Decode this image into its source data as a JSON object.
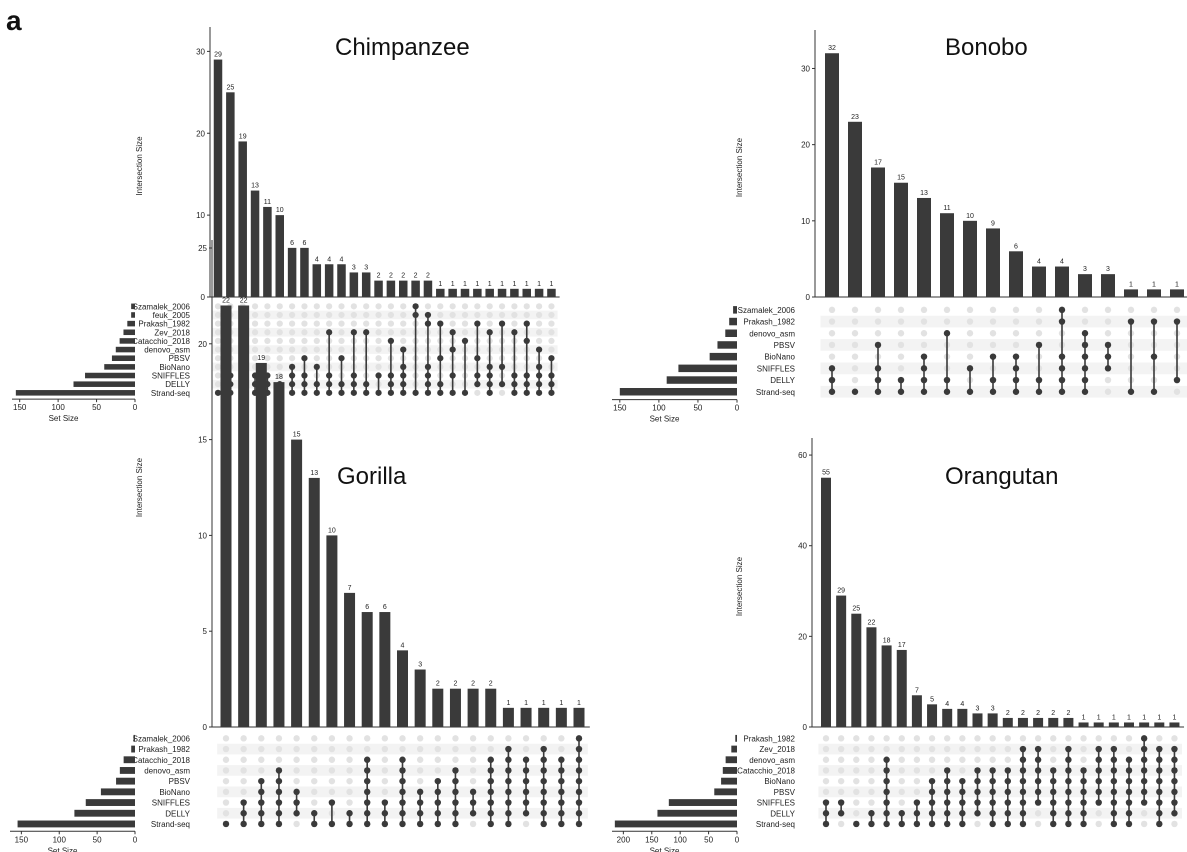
{
  "panel_label": "a",
  "colors": {
    "bar": "#3a3a3a",
    "dot_active": "#3a3a3a",
    "dot_inactive": "#e2e2e2",
    "stripe": "#f3f3f3",
    "axis": "#333333",
    "text": "#222222"
  },
  "chart_data": [
    {
      "type": "upset",
      "title": "Chimpanzee",
      "ylabel": "Intersection Size",
      "xlabel_sets": "Set Size",
      "ylim": [
        0,
        32
      ],
      "yticks": [
        0,
        10,
        20,
        30
      ],
      "set_ticks": [
        150,
        100,
        50,
        0
      ],
      "sets": [
        "Szamalek_2006",
        "feuk_2005",
        "Prakash_1982",
        "Zev_2018",
        "Catacchio_2018",
        "denovo_asm",
        "PBSV",
        "BioNano",
        "SNIFFLES",
        "DELLY",
        "Strand-seq"
      ],
      "set_sizes": [
        5,
        5,
        10,
        15,
        20,
        25,
        30,
        40,
        65,
        80,
        155
      ],
      "intersections": [
        {
          "size": 29,
          "members": [
            10
          ]
        },
        {
          "size": 25,
          "members": [
            8,
            9,
            10
          ]
        },
        {
          "size": 19,
          "members": [
            5,
            9,
            10
          ]
        },
        {
          "size": 13,
          "members": [
            8,
            9,
            10
          ]
        },
        {
          "size": 11,
          "members": [
            8,
            9,
            10
          ]
        },
        {
          "size": 10,
          "members": [
            9,
            10
          ]
        },
        {
          "size": 6,
          "members": [
            7,
            8,
            9,
            10
          ]
        },
        {
          "size": 6,
          "members": [
            6,
            8,
            9,
            10
          ]
        },
        {
          "size": 4,
          "members": [
            7,
            9,
            10
          ]
        },
        {
          "size": 4,
          "members": [
            3,
            8,
            9,
            10
          ]
        },
        {
          "size": 4,
          "members": [
            6,
            9,
            10
          ]
        },
        {
          "size": 3,
          "members": [
            3,
            8,
            9,
            10
          ]
        },
        {
          "size": 3,
          "members": [
            3,
            9,
            10
          ]
        },
        {
          "size": 2,
          "members": [
            8,
            10
          ]
        },
        {
          "size": 2,
          "members": [
            4,
            8,
            9,
            10
          ]
        },
        {
          "size": 2,
          "members": [
            5,
            7,
            8,
            9,
            10
          ]
        },
        {
          "size": 2,
          "members": [
            0,
            1,
            10
          ]
        },
        {
          "size": 2,
          "members": [
            1,
            2,
            7,
            8,
            9,
            10
          ]
        },
        {
          "size": 1,
          "members": [
            2,
            6,
            9,
            10
          ]
        },
        {
          "size": 1,
          "members": [
            3,
            5,
            8,
            10
          ]
        },
        {
          "size": 1,
          "members": [
            4,
            10
          ]
        },
        {
          "size": 1,
          "members": [
            2,
            6,
            8,
            9
          ]
        },
        {
          "size": 1,
          "members": [
            3,
            7,
            8,
            9,
            10
          ]
        },
        {
          "size": 1,
          "members": [
            2,
            7,
            9
          ]
        },
        {
          "size": 1,
          "members": [
            3,
            8,
            9,
            10
          ]
        },
        {
          "size": 1,
          "members": [
            2,
            4,
            8,
            9,
            10
          ]
        },
        {
          "size": 1,
          "members": [
            5,
            7,
            8,
            9,
            10
          ]
        },
        {
          "size": 1,
          "members": [
            6,
            8,
            9,
            10
          ]
        }
      ]
    },
    {
      "type": "upset",
      "title": "Bonobo",
      "ylabel": "Intersection Size",
      "xlabel_sets": "Set Size",
      "ylim": [
        0,
        34
      ],
      "yticks": [
        0,
        10,
        20,
        30
      ],
      "set_ticks": [
        150,
        100,
        50,
        0
      ],
      "sets": [
        "Szamalek_2006",
        "Prakash_1982",
        "denovo_asm",
        "PBSV",
        "BioNano",
        "SNIFFLES",
        "DELLY",
        "Strand-seq"
      ],
      "set_sizes": [
        5,
        10,
        15,
        25,
        35,
        75,
        90,
        150
      ],
      "intersections": [
        {
          "size": 32,
          "members": [
            5,
            6,
            7
          ]
        },
        {
          "size": 23,
          "members": [
            7
          ]
        },
        {
          "size": 17,
          "members": [
            3,
            5,
            6,
            7
          ]
        },
        {
          "size": 15,
          "members": [
            6,
            7
          ]
        },
        {
          "size": 13,
          "members": [
            4,
            5,
            6,
            7
          ]
        },
        {
          "size": 11,
          "members": [
            2,
            6,
            7
          ]
        },
        {
          "size": 10,
          "members": [
            5,
            7
          ]
        },
        {
          "size": 9,
          "members": [
            4,
            6,
            7
          ]
        },
        {
          "size": 6,
          "members": [
            4,
            5,
            6,
            7
          ]
        },
        {
          "size": 4,
          "members": [
            3,
            6,
            7
          ]
        },
        {
          "size": 4,
          "members": [
            0,
            1,
            4,
            5,
            6,
            7
          ]
        },
        {
          "size": 3,
          "members": [
            2,
            3,
            4,
            5,
            6,
            7
          ]
        },
        {
          "size": 3,
          "members": [
            3,
            4,
            5
          ]
        },
        {
          "size": 1,
          "members": [
            1,
            7
          ]
        },
        {
          "size": 1,
          "members": [
            1,
            4,
            7
          ]
        },
        {
          "size": 1,
          "members": [
            1,
            6
          ]
        }
      ]
    },
    {
      "type": "upset",
      "title": "Gorilla",
      "ylabel": "Intersection Size",
      "xlabel_sets": "Set Size",
      "ylim": [
        0,
        25
      ],
      "yticks": [
        0,
        5,
        10,
        15,
        20,
        25
      ],
      "set_ticks": [
        150,
        100,
        50,
        0
      ],
      "sets": [
        "Szamalek_2006",
        "Prakash_1982",
        "Catacchio_2018",
        "denovo_asm",
        "PBSV",
        "BioNano",
        "SNIFFLES",
        "DELLY",
        "Strand-seq"
      ],
      "set_sizes": [
        2,
        5,
        15,
        20,
        25,
        45,
        65,
        80,
        155
      ],
      "intersections": [
        {
          "size": 22,
          "members": [
            8
          ]
        },
        {
          "size": 22,
          "members": [
            6,
            7,
            8
          ]
        },
        {
          "size": 19,
          "members": [
            4,
            5,
            6,
            7,
            8
          ]
        },
        {
          "size": 18,
          "members": [
            3,
            4,
            5,
            6,
            7,
            8
          ]
        },
        {
          "size": 15,
          "members": [
            5,
            6,
            7
          ]
        },
        {
          "size": 13,
          "members": [
            7,
            8
          ]
        },
        {
          "size": 10,
          "members": [
            6,
            8
          ]
        },
        {
          "size": 7,
          "members": [
            7,
            8
          ]
        },
        {
          "size": 6,
          "members": [
            2,
            3,
            4,
            5,
            6,
            7,
            8
          ]
        },
        {
          "size": 6,
          "members": [
            6,
            7,
            8
          ]
        },
        {
          "size": 4,
          "members": [
            2,
            3,
            4,
            5,
            6,
            7,
            8
          ]
        },
        {
          "size": 3,
          "members": [
            5,
            6,
            7,
            8
          ]
        },
        {
          "size": 2,
          "members": [
            4,
            5,
            6,
            7,
            8
          ]
        },
        {
          "size": 2,
          "members": [
            3,
            4,
            5,
            6,
            7,
            8
          ]
        },
        {
          "size": 2,
          "members": [
            5,
            6,
            7
          ]
        },
        {
          "size": 2,
          "members": [
            2,
            3,
            4,
            5,
            6,
            7,
            8
          ]
        },
        {
          "size": 1,
          "members": [
            1,
            2,
            3,
            4,
            5,
            6,
            7,
            8
          ]
        },
        {
          "size": 1,
          "members": [
            2,
            3,
            4,
            5,
            6,
            7
          ]
        },
        {
          "size": 1,
          "members": [
            1,
            2,
            3,
            4,
            5,
            6,
            7,
            8
          ]
        },
        {
          "size": 1,
          "members": [
            2,
            3,
            4,
            5,
            6,
            7,
            8
          ]
        },
        {
          "size": 1,
          "members": [
            0,
            1,
            2,
            3,
            4,
            5,
            6,
            7,
            8
          ]
        }
      ]
    },
    {
      "type": "upset",
      "title": "Orangutan",
      "ylabel": "Intersection Size",
      "xlabel_sets": "Set Size",
      "ylim": [
        0,
        62
      ],
      "yticks": [
        0,
        20,
        40,
        60
      ],
      "set_ticks": [
        200,
        150,
        100,
        50,
        0
      ],
      "sets": [
        "Prakash_1982",
        "Zev_2018",
        "denovo_asm",
        "Catacchio_2018",
        "BioNano",
        "PBSV",
        "SNIFFLES",
        "DELLY",
        "Strand-seq"
      ],
      "set_sizes": [
        3,
        10,
        20,
        25,
        28,
        40,
        120,
        140,
        215
      ],
      "intersections": [
        {
          "size": 55,
          "members": [
            6,
            7,
            8
          ]
        },
        {
          "size": 29,
          "members": [
            6,
            7
          ]
        },
        {
          "size": 25,
          "members": [
            8
          ]
        },
        {
          "size": 22,
          "members": [
            7,
            8
          ]
        },
        {
          "size": 18,
          "members": [
            2,
            3,
            4,
            5,
            6,
            7,
            8
          ]
        },
        {
          "size": 17,
          "members": [
            7,
            8
          ]
        },
        {
          "size": 7,
          "members": [
            6,
            7,
            8
          ]
        },
        {
          "size": 5,
          "members": [
            4,
            5,
            6,
            7,
            8
          ]
        },
        {
          "size": 4,
          "members": [
            3,
            4,
            5,
            6,
            7,
            8
          ]
        },
        {
          "size": 4,
          "members": [
            4,
            5,
            6,
            7,
            8
          ]
        },
        {
          "size": 3,
          "members": [
            3,
            4,
            5,
            6,
            7
          ]
        },
        {
          "size": 3,
          "members": [
            3,
            4,
            5,
            6,
            7,
            8
          ]
        },
        {
          "size": 2,
          "members": [
            3,
            4,
            5,
            6,
            7,
            8
          ]
        },
        {
          "size": 2,
          "members": [
            1,
            2,
            3,
            4,
            5,
            6,
            7,
            8
          ]
        },
        {
          "size": 2,
          "members": [
            1,
            2,
            3,
            4,
            5,
            6
          ]
        },
        {
          "size": 2,
          "members": [
            3,
            4,
            5,
            6,
            7,
            8
          ]
        },
        {
          "size": 2,
          "members": [
            1,
            2,
            3,
            4,
            5,
            6,
            7,
            8
          ]
        },
        {
          "size": 1,
          "members": [
            3,
            4,
            5,
            6,
            7,
            8
          ]
        },
        {
          "size": 1,
          "members": [
            1,
            2,
            3,
            4,
            5,
            6
          ]
        },
        {
          "size": 1,
          "members": [
            1,
            2,
            3,
            4,
            5,
            6,
            7,
            8
          ]
        },
        {
          "size": 1,
          "members": [
            2,
            3,
            4,
            5,
            6,
            7,
            8
          ]
        },
        {
          "size": 1,
          "members": [
            0,
            1,
            2,
            3,
            4,
            5,
            6
          ]
        },
        {
          "size": 1,
          "members": [
            1,
            2,
            3,
            4,
            5,
            6,
            7,
            8
          ]
        },
        {
          "size": 1,
          "members": [
            1,
            2,
            3,
            4,
            5,
            6,
            7
          ]
        }
      ]
    }
  ]
}
